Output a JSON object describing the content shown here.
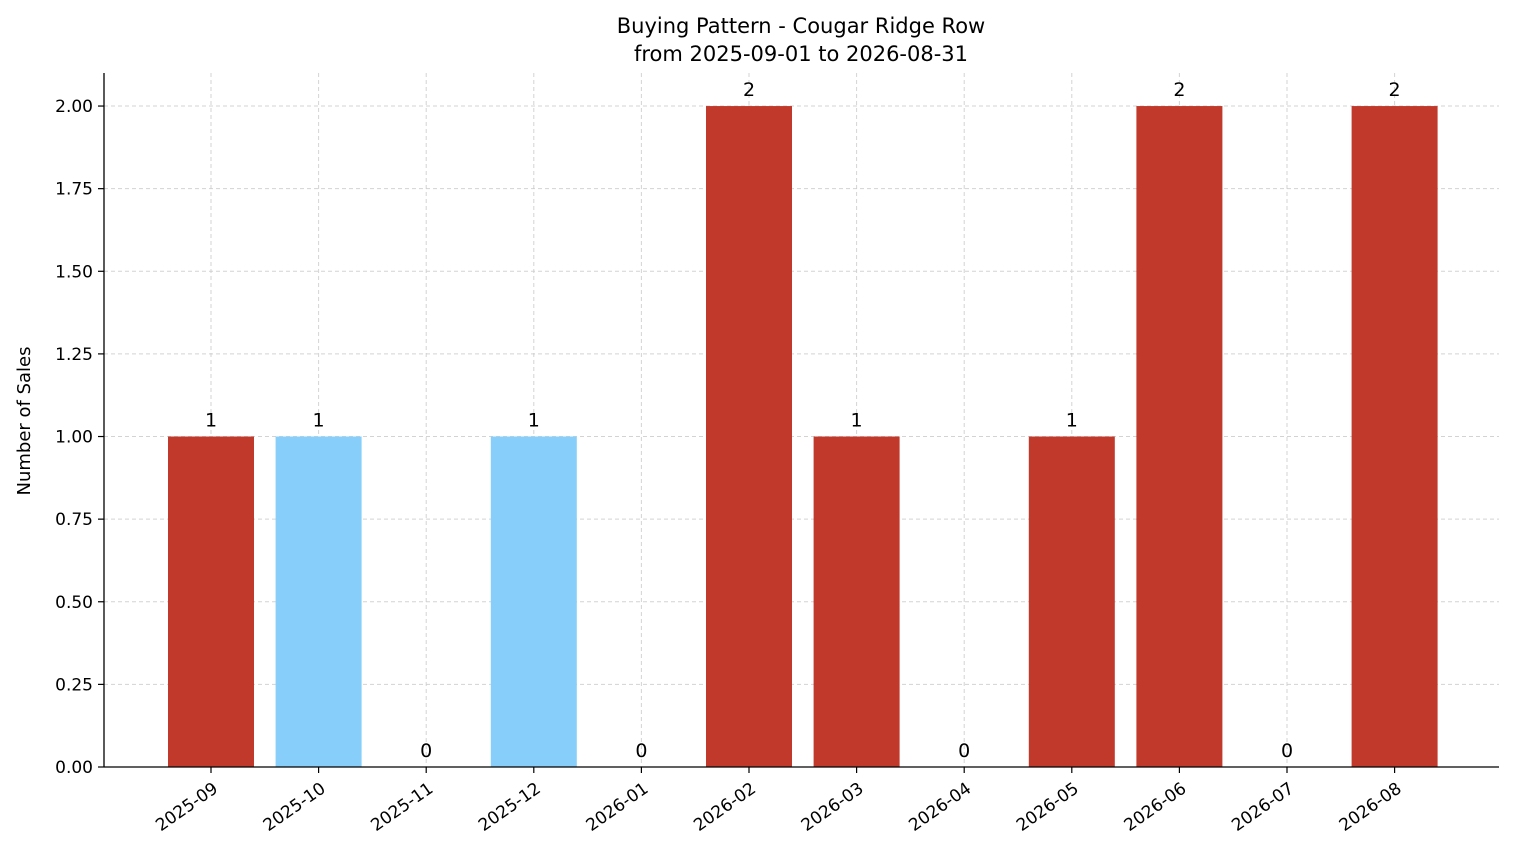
{
  "chart_data": {
    "type": "bar",
    "title": "Buying Pattern - Cougar Ridge Row",
    "subtitle": "from 2025-09-01 to 2026-08-31",
    "xlabel": "",
    "ylabel": "Number of Sales",
    "ylim": [
      0,
      2.1
    ],
    "yticks": [
      "0.00",
      "0.25",
      "0.50",
      "0.75",
      "1.00",
      "1.25",
      "1.50",
      "1.75",
      "2.00"
    ],
    "ytick_values": [
      0,
      0.25,
      0.5,
      0.75,
      1.0,
      1.25,
      1.5,
      1.75,
      2.0
    ],
    "grid": true,
    "categories": [
      "2025-09",
      "2025-10",
      "2025-11",
      "2025-12",
      "2026-01",
      "2026-02",
      "2026-03",
      "2026-04",
      "2026-05",
      "2026-06",
      "2026-07",
      "2026-08"
    ],
    "values": [
      1,
      1,
      0,
      1,
      0,
      2,
      1,
      0,
      1,
      2,
      0,
      2
    ],
    "value_labels": [
      "1",
      "1",
      "0",
      "1",
      "0",
      "2",
      "1",
      "0",
      "1",
      "2",
      "0",
      "2"
    ],
    "bar_colors": [
      "#c0392b",
      "#87cefa",
      "#c0392b",
      "#87cefa",
      "#c0392b",
      "#c0392b",
      "#c0392b",
      "#c0392b",
      "#c0392b",
      "#c0392b",
      "#c0392b",
      "#c0392b"
    ]
  }
}
